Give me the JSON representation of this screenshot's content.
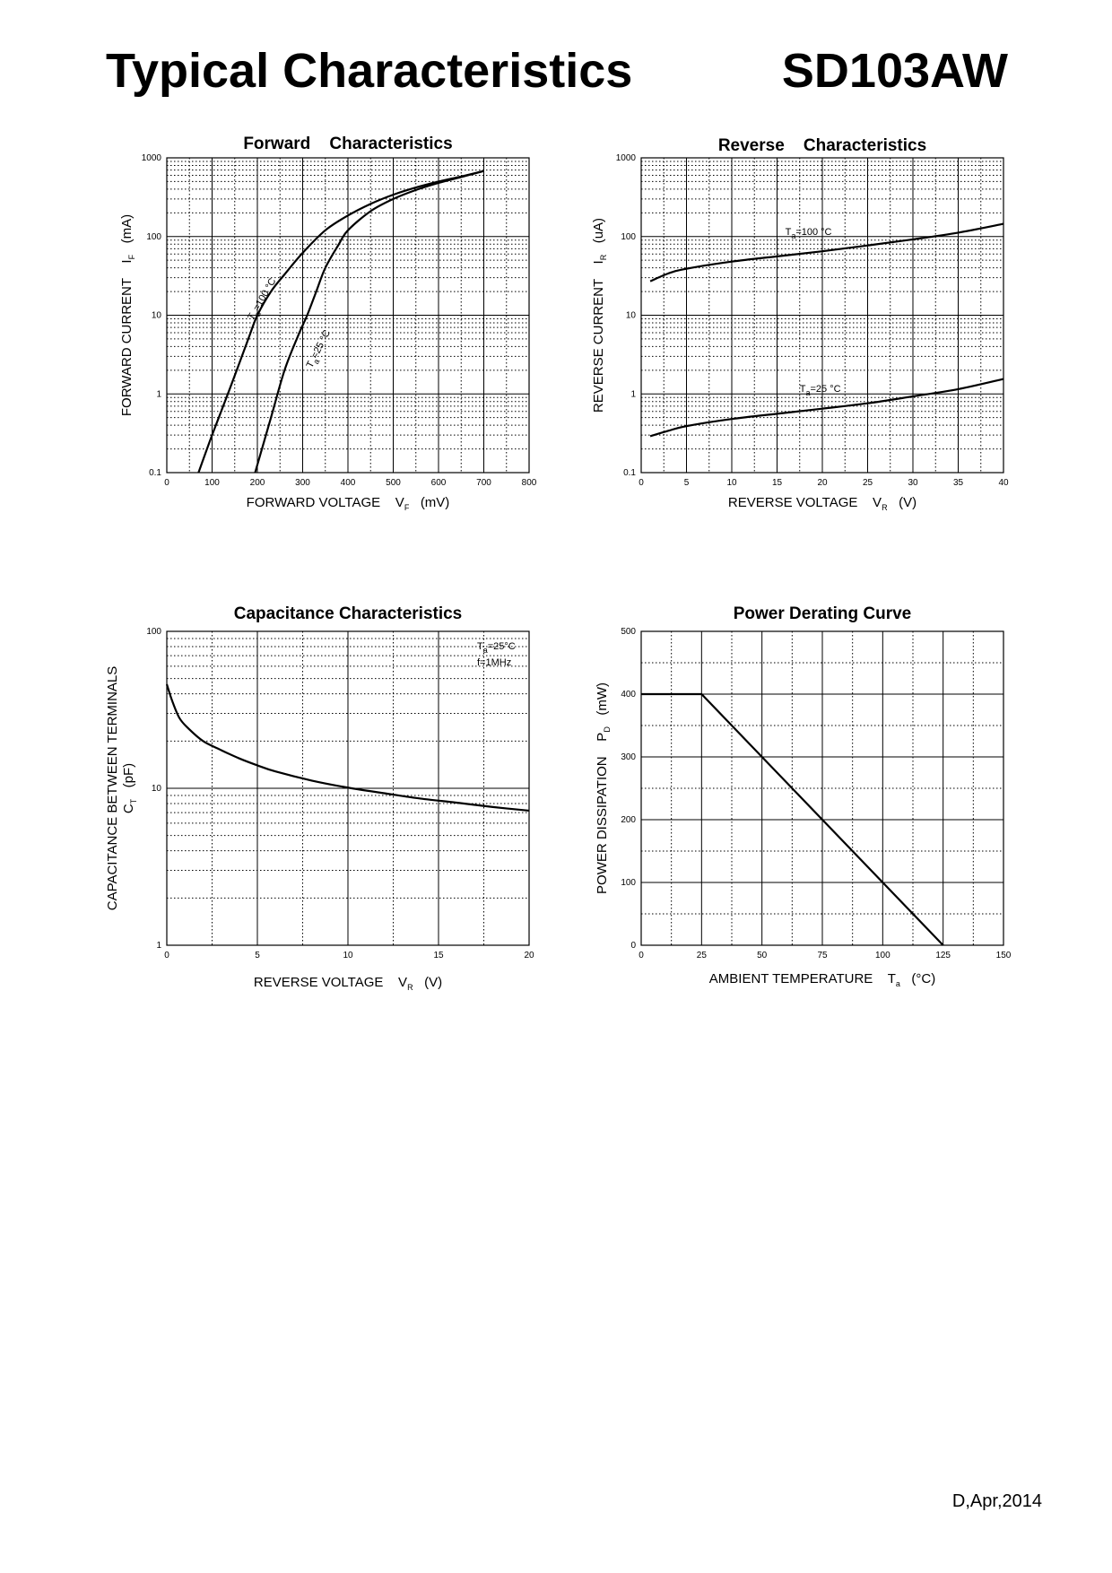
{
  "header": {
    "title": "Typical Characteristics",
    "part_number": "SD103AW"
  },
  "footer": {
    "revision": "D,Apr,2014"
  },
  "chart_data": [
    {
      "id": "forward",
      "type": "line",
      "title": "Forward    Characteristics",
      "x_scale": "linear",
      "y_scale": "log",
      "xlim": [
        0,
        800
      ],
      "ylim": [
        0.1,
        1000
      ],
      "x_ticks": [
        0,
        100,
        200,
        300,
        400,
        500,
        600,
        700,
        800
      ],
      "x_tick_labels": [
        "0",
        "100",
        "200",
        "300",
        "400",
        "500",
        "600",
        "700",
        "800"
      ],
      "y_ticks": [
        0.1,
        1,
        10,
        100,
        1000
      ],
      "y_tick_labels": [
        "0.1",
        "1",
        "10",
        "100",
        "1000"
      ],
      "xlabel": {
        "main": "FORWARD VOLTAGE    V",
        "sub": "F",
        "unit": "(mV)"
      },
      "ylabel": {
        "main": "FORWARD CURRENT    I",
        "sub": "F",
        "unit": "(mA)"
      },
      "series": [
        {
          "name": "Ta=100°C",
          "label_main": "T",
          "label_sub": "a",
          "label_rest": "=100 °C",
          "label_at": [
            190,
            8.5
          ],
          "label_angle": -60,
          "x": [
            70,
            100,
            140,
            180,
            200,
            230,
            260,
            300,
            350,
            400,
            450,
            500,
            550,
            600,
            650,
            700
          ],
          "y": [
            0.1,
            0.3,
            1.2,
            5,
            10,
            20,
            33,
            62,
            120,
            185,
            260,
            340,
            420,
            500,
            580,
            680
          ]
        },
        {
          "name": "Ta=25°C",
          "label_main": "T",
          "label_sub": "a",
          "label_rest": "=25 °C",
          "label_at": [
            320,
            2.1
          ],
          "label_angle": -63,
          "x": [
            195,
            230,
            260,
            290,
            310,
            330,
            350,
            380,
            400,
            450,
            500,
            550,
            600,
            650,
            700
          ],
          "y": [
            0.1,
            0.5,
            2,
            5.5,
            10,
            20,
            40,
            80,
            120,
            210,
            300,
            390,
            480,
            570,
            680
          ]
        }
      ]
    },
    {
      "id": "reverse",
      "type": "line",
      "title": "Reverse    Characteristics",
      "x_scale": "linear",
      "y_scale": "log",
      "xlim": [
        0,
        40
      ],
      "ylim": [
        0.1,
        1000
      ],
      "x_ticks": [
        0,
        5,
        10,
        15,
        20,
        25,
        30,
        35,
        40
      ],
      "x_tick_labels": [
        "0",
        "5",
        "10",
        "15",
        "20",
        "25",
        "30",
        "35",
        "40"
      ],
      "y_ticks": [
        0.1,
        1,
        10,
        100,
        1000
      ],
      "y_tick_labels": [
        "0.1",
        "1",
        "10",
        "100",
        "1000"
      ],
      "xlabel": {
        "main": "REVERSE VOLTAGE    V",
        "sub": "R",
        "unit": "(V)"
      },
      "ylabel": {
        "main": "REVERSE CURRENT    I",
        "sub": "R",
        "unit": "(uA)"
      },
      "series": [
        {
          "name": "Ta=100°C",
          "label_main": "T",
          "label_sub": "a",
          "label_rest": "=100 °C",
          "label_at": [
            15.9,
            105
          ],
          "label_angle": 0,
          "x": [
            1,
            3,
            5,
            10,
            15,
            20,
            25,
            30,
            35,
            40
          ],
          "y": [
            27,
            34,
            39,
            48,
            56,
            65,
            77,
            92,
            112,
            145
          ]
        },
        {
          "name": "Ta=25°C",
          "label_main": "T",
          "label_sub": "a",
          "label_rest": "=25 °C",
          "label_at": [
            17.5,
            1.06
          ],
          "label_angle": 0,
          "x": [
            1,
            3,
            5,
            10,
            15,
            20,
            25,
            30,
            35,
            40
          ],
          "y": [
            0.29,
            0.34,
            0.39,
            0.48,
            0.56,
            0.65,
            0.76,
            0.93,
            1.15,
            1.55
          ]
        }
      ]
    },
    {
      "id": "capacitance",
      "type": "line",
      "title": "Capacitance Characteristics",
      "x_scale": "linear",
      "y_scale": "log",
      "xlim": [
        0,
        20
      ],
      "ylim": [
        1,
        100
      ],
      "x_ticks": [
        0,
        5,
        10,
        15,
        20
      ],
      "x_tick_labels": [
        "0",
        "5",
        "10",
        "15",
        "20"
      ],
      "y_ticks": [
        1,
        10,
        100
      ],
      "y_tick_labels": [
        "1",
        "10",
        "100"
      ],
      "xlabel": {
        "main": "REVERSE VOLTAGE    V",
        "sub": "R",
        "unit": "(V)"
      },
      "ylabel": {
        "main": "CAPACITANCE BETWEEN TERMINALS",
        "sub": "T",
        "symbol": "C",
        "unit": "(pF)"
      },
      "annotation": {
        "line1_main": "T",
        "line1_sub": "a",
        "line1_rest": "=25°C",
        "line2": "f=1MHz"
      },
      "series": [
        {
          "name": "CT",
          "x": [
            0,
            0.3,
            0.7,
            1.2,
            2,
            3,
            4,
            5,
            6,
            8,
            10,
            12,
            14,
            16,
            18,
            20
          ],
          "y": [
            46,
            36,
            28,
            24,
            20,
            17.5,
            15.5,
            14,
            12.8,
            11.2,
            10.1,
            9.3,
            8.6,
            8.1,
            7.6,
            7.2
          ]
        }
      ]
    },
    {
      "id": "derating",
      "type": "line",
      "title": "Power Derating Curve",
      "x_scale": "linear",
      "y_scale": "linear",
      "xlim": [
        0,
        150
      ],
      "ylim": [
        0,
        500
      ],
      "x_ticks": [
        0,
        25,
        50,
        75,
        100,
        125,
        150
      ],
      "x_tick_labels": [
        "0",
        "25",
        "50",
        "75",
        "100",
        "125",
        "150"
      ],
      "y_ticks": [
        0,
        100,
        200,
        300,
        400,
        500
      ],
      "y_tick_labels": [
        "0",
        "100",
        "200",
        "300",
        "400",
        "500"
      ],
      "xlabel": {
        "main": "AMBIENT TEMPERATURE    T",
        "sub": "a",
        "unit": "(°C)"
      },
      "ylabel": {
        "main": "POWER DISSIPATION    P",
        "sub": "D",
        "unit": "(mW)"
      },
      "series": [
        {
          "name": "PD",
          "x": [
            0,
            25,
            125
          ],
          "y": [
            400,
            400,
            0
          ]
        }
      ]
    }
  ]
}
